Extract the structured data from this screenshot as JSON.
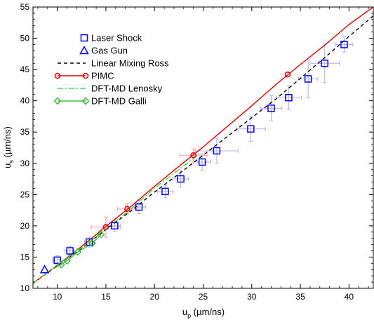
{
  "chart_data": {
    "type": "scatter",
    "xlabel": "u",
    "xlabel_sub": "p",
    "xlabel_units": "(µm/ns)",
    "ylabel": "u",
    "ylabel_sub": "s",
    "ylabel_units": "(µm/ns)",
    "xlim": [
      7.5,
      42.5
    ],
    "ylim": [
      10,
      55
    ],
    "xticks": [
      10,
      15,
      20,
      25,
      30,
      35,
      40
    ],
    "yticks": [
      10,
      15,
      20,
      25,
      30,
      35,
      40,
      45,
      50,
      55
    ],
    "grid": false,
    "legend_position": "top-left",
    "series": [
      {
        "name": "Laser Shock",
        "kind": "markers",
        "marker": "square",
        "color": "#0000ff",
        "errcolor": "#b0b0e8",
        "points": [
          {
            "x": 10.0,
            "y": 14.5,
            "xerr": 0.5,
            "yerr": 0.7
          },
          {
            "x": 11.3,
            "y": 16.0,
            "xerr": 0.5,
            "yerr": 0.7
          },
          {
            "x": 13.3,
            "y": 17.4,
            "xerr": 0.5,
            "yerr": 0.8
          },
          {
            "x": 15.9,
            "y": 20.0,
            "xerr": 0.6,
            "yerr": 0.9
          },
          {
            "x": 18.4,
            "y": 23.0,
            "xerr": 0.7,
            "yerr": 1.1
          },
          {
            "x": 21.1,
            "y": 25.5,
            "xerr": 0.8,
            "yerr": 1.0
          },
          {
            "x": 22.7,
            "y": 27.5,
            "xerr": 0.8,
            "yerr": 1.3
          },
          {
            "x": 24.9,
            "y": 30.2,
            "xerr": 0.9,
            "yerr": 1.3
          },
          {
            "x": 26.4,
            "y": 32.0,
            "xerr": 2.2,
            "yerr": 2.0
          },
          {
            "x": 29.9,
            "y": 35.5,
            "xerr": 1.5,
            "yerr": 2.0
          },
          {
            "x": 32.0,
            "y": 38.8,
            "xerr": 1.1,
            "yerr": 2.0
          },
          {
            "x": 33.8,
            "y": 40.5,
            "xerr": 1.3,
            "yerr": 1.9
          },
          {
            "x": 35.8,
            "y": 43.5,
            "xerr": 1.0,
            "yerr": 3.0
          },
          {
            "x": 37.5,
            "y": 46.0,
            "xerr": 1.5,
            "yerr": 3.1
          },
          {
            "x": 39.5,
            "y": 49.0,
            "xerr": 0.9,
            "yerr": 1.2
          }
        ]
      },
      {
        "name": "Gas Gun",
        "kind": "markers",
        "marker": "triangle",
        "color": "#0000ff",
        "points": [
          {
            "x": 8.7,
            "y": 13.0
          }
        ]
      },
      {
        "name": "Linear Mixing Ross",
        "kind": "line",
        "style": "dashed",
        "color": "#000000",
        "x": [
          7.5,
          10,
          12.5,
          15,
          17.5,
          20,
          22.5,
          25,
          27.5,
          30,
          32.5,
          35,
          37.5,
          40,
          42.5
        ],
        "y": [
          10.8,
          13.6,
          16.4,
          19.4,
          22.3,
          25.4,
          28.3,
          31.3,
          34.3,
          37.3,
          40.3,
          43.6,
          46.9,
          50.3,
          53.6
        ]
      },
      {
        "name": "PIMC",
        "kind": "line+markers",
        "style": "solid",
        "marker": "circle",
        "color": "#e00000",
        "errcolor": "#f0a0a0",
        "line_x": [
          7.5,
          10,
          12.5,
          15,
          17.5,
          20,
          22.5,
          25,
          27.5,
          30,
          32.5,
          35,
          37.5,
          40,
          42.5
        ],
        "line_y": [
          10.8,
          13.7,
          16.7,
          19.9,
          23.0,
          26.3,
          29.5,
          32.6,
          35.9,
          39.2,
          42.6,
          45.8,
          48.9,
          52.2,
          55.0
        ],
        "points": [
          {
            "x": 15.0,
            "y": 19.8,
            "xerr": 1.5,
            "yerr": 1.6
          },
          {
            "x": 17.2,
            "y": 22.7,
            "xerr": 1.0,
            "yerr": 0.8
          },
          {
            "x": 24.0,
            "y": 31.3,
            "xerr": 1.4,
            "yerr": 1.0
          },
          {
            "x": 33.7,
            "y": 44.2,
            "xerr": 0,
            "yerr": 0
          }
        ]
      },
      {
        "name": "DFT-MD Lenosky",
        "kind": "line",
        "style": "dashdot",
        "color": "#44dd44",
        "x": [
          7.5,
          10,
          12.5,
          15,
          17.5,
          20,
          22.5,
          24.7
        ],
        "y": [
          10.8,
          13.7,
          16.5,
          19.5,
          22.6,
          26.0,
          29.0,
          31.6
        ]
      },
      {
        "name": "DFT-MD Galli",
        "kind": "line+markers",
        "style": "solid",
        "marker": "diamond",
        "color": "#44bb44",
        "line_x": [
          9.8,
          10.4,
          11.0,
          12.1,
          13.6,
          14.5
        ],
        "line_y": [
          13.3,
          13.8,
          14.4,
          15.8,
          17.2,
          18.6
        ],
        "points": [
          {
            "x": 10.4,
            "y": 13.8
          },
          {
            "x": 11.0,
            "y": 14.4
          },
          {
            "x": 12.1,
            "y": 15.8
          },
          {
            "x": 13.6,
            "y": 17.2
          },
          {
            "x": 14.5,
            "y": 18.6
          }
        ]
      }
    ]
  }
}
